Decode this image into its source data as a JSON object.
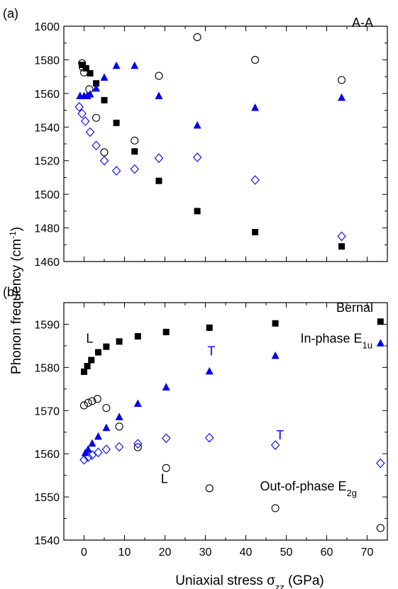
{
  "figure": {
    "ylabel_main": "Phonon frequency (cm",
    "ylabel_sup": "-1",
    "ylabel_close": ")",
    "xlabel_main": "Uniaxial stress σ",
    "xlabel_sub": "zz",
    "xlabel_units": " (GPa)"
  },
  "colors": {
    "blue": "#0000ee",
    "black": "#000000"
  },
  "chart_data": [
    {
      "type": "scatter",
      "panel": "(a)",
      "title": "A-A",
      "xlim": [
        -5,
        75
      ],
      "ylim": [
        1460,
        1600
      ],
      "xticks": [
        0,
        10,
        20,
        30,
        40,
        50,
        60,
        70
      ],
      "yticks": [
        1460,
        1480,
        1500,
        1520,
        1540,
        1560,
        1580,
        1600
      ],
      "show_x_tick_labels": false,
      "series": [
        {
          "marker": "square-filled",
          "color": "#000000",
          "x": [
            -0.5,
            0.5,
            1.5,
            3,
            5,
            8,
            12.5,
            18.5,
            28,
            42.3,
            63.7
          ],
          "y": [
            1577,
            1575,
            1572,
            1566,
            1556,
            1542.5,
            1525.5,
            1508,
            1490,
            1477.5,
            1469
          ]
        },
        {
          "marker": "circle-open",
          "color": "#000000",
          "x": [
            -0.5,
            -0.3,
            0,
            1.3,
            3,
            5,
            12.5,
            18.5,
            28,
            42.3,
            63.7
          ],
          "y": [
            1578,
            1575.5,
            1572.5,
            1562.5,
            1545.5,
            1525,
            1532,
            1570.5,
            1593.5,
            1580,
            1568
          ]
        },
        {
          "marker": "triangle-filled",
          "color": "#0000ee",
          "x": [
            -1,
            0,
            0.8,
            1.5,
            3,
            5,
            8,
            12.5,
            18.5,
            28,
            42.3,
            63.7
          ],
          "y": [
            1558.5,
            1558.5,
            1558.5,
            1559.5,
            1563,
            1569.5,
            1576.5,
            1576.5,
            1558.5,
            1541,
            1551.5,
            1557.5
          ]
        },
        {
          "marker": "diamond-open",
          "color": "#0000ee",
          "x": [
            -1.2,
            -0.5,
            0.3,
            1.5,
            3,
            5,
            8,
            12.5,
            18.5,
            28,
            42.3,
            63.7
          ],
          "y": [
            1552,
            1548,
            1543.5,
            1537,
            1529,
            1520,
            1514,
            1515,
            1521.5,
            1522,
            1508.5,
            1475
          ]
        }
      ]
    },
    {
      "type": "scatter",
      "panel": "(b)",
      "title": "Bernal",
      "xlim": [
        -5,
        75
      ],
      "ylim": [
        1540,
        1595
      ],
      "xticks": [
        0,
        10,
        20,
        30,
        40,
        50,
        60,
        70
      ],
      "yticks": [
        1540,
        1550,
        1560,
        1570,
        1580,
        1590
      ],
      "show_x_tick_labels": true,
      "annotations": [
        {
          "text": "L",
          "x": 0.5,
          "y": 1585.7,
          "color": "#000000"
        },
        {
          "text": "T",
          "x": 30.5,
          "y": 1582.8,
          "color": "#0000ee"
        },
        {
          "text": "T",
          "x": 47.5,
          "y": 1563.3,
          "color": "#0000ee"
        },
        {
          "text": "L",
          "x": 19,
          "y": 1553.2,
          "color": "#000000"
        },
        {
          "text": "In-phase E",
          "sub": "1u",
          "x": 53.5,
          "y": 1585.7,
          "color": "#000000"
        },
        {
          "text": "Out-of-phase E",
          "sub": "2g",
          "x": 43.5,
          "y": 1551.5,
          "color": "#000000"
        }
      ],
      "series": [
        {
          "marker": "square-filled",
          "color": "#000000",
          "x": [
            0,
            0.8,
            1.8,
            3.5,
            5.5,
            8.7,
            13.3,
            20.3,
            31,
            47.3,
            73.3
          ],
          "y": [
            1579,
            1580.3,
            1581.7,
            1583.5,
            1584.8,
            1586,
            1587.2,
            1588.2,
            1589.2,
            1590.2,
            1590.6
          ]
        },
        {
          "marker": "circle-open",
          "color": "#000000",
          "x": [
            0,
            1,
            2,
            3.3,
            5.5,
            8.7,
            13.3,
            20.3,
            31,
            47.3,
            73.3
          ],
          "y": [
            1571.2,
            1571.8,
            1572.2,
            1572.7,
            1570.6,
            1566.3,
            1561.5,
            1556.7,
            1552,
            1547.4,
            1542.8
          ]
        },
        {
          "marker": "triangle-filled",
          "color": "#0000ee",
          "x": [
            0.3,
            1,
            2,
            3.5,
            5.5,
            8.7,
            13.3,
            20.3,
            31,
            47.3,
            73.3
          ],
          "y": [
            1560.2,
            1561,
            1562.4,
            1564,
            1566,
            1568.5,
            1571.6,
            1575.4,
            1579.1,
            1582.7,
            1585.6
          ]
        },
        {
          "marker": "diamond-open",
          "color": "#0000ee",
          "x": [
            0,
            1,
            2,
            3.5,
            5.5,
            8.7,
            13.3,
            20.3,
            31,
            47.3,
            73.3
          ],
          "y": [
            1558.6,
            1559.2,
            1559.7,
            1560.3,
            1561,
            1561.6,
            1562.3,
            1563.6,
            1563.7,
            1562,
            1557.8
          ]
        }
      ]
    }
  ]
}
